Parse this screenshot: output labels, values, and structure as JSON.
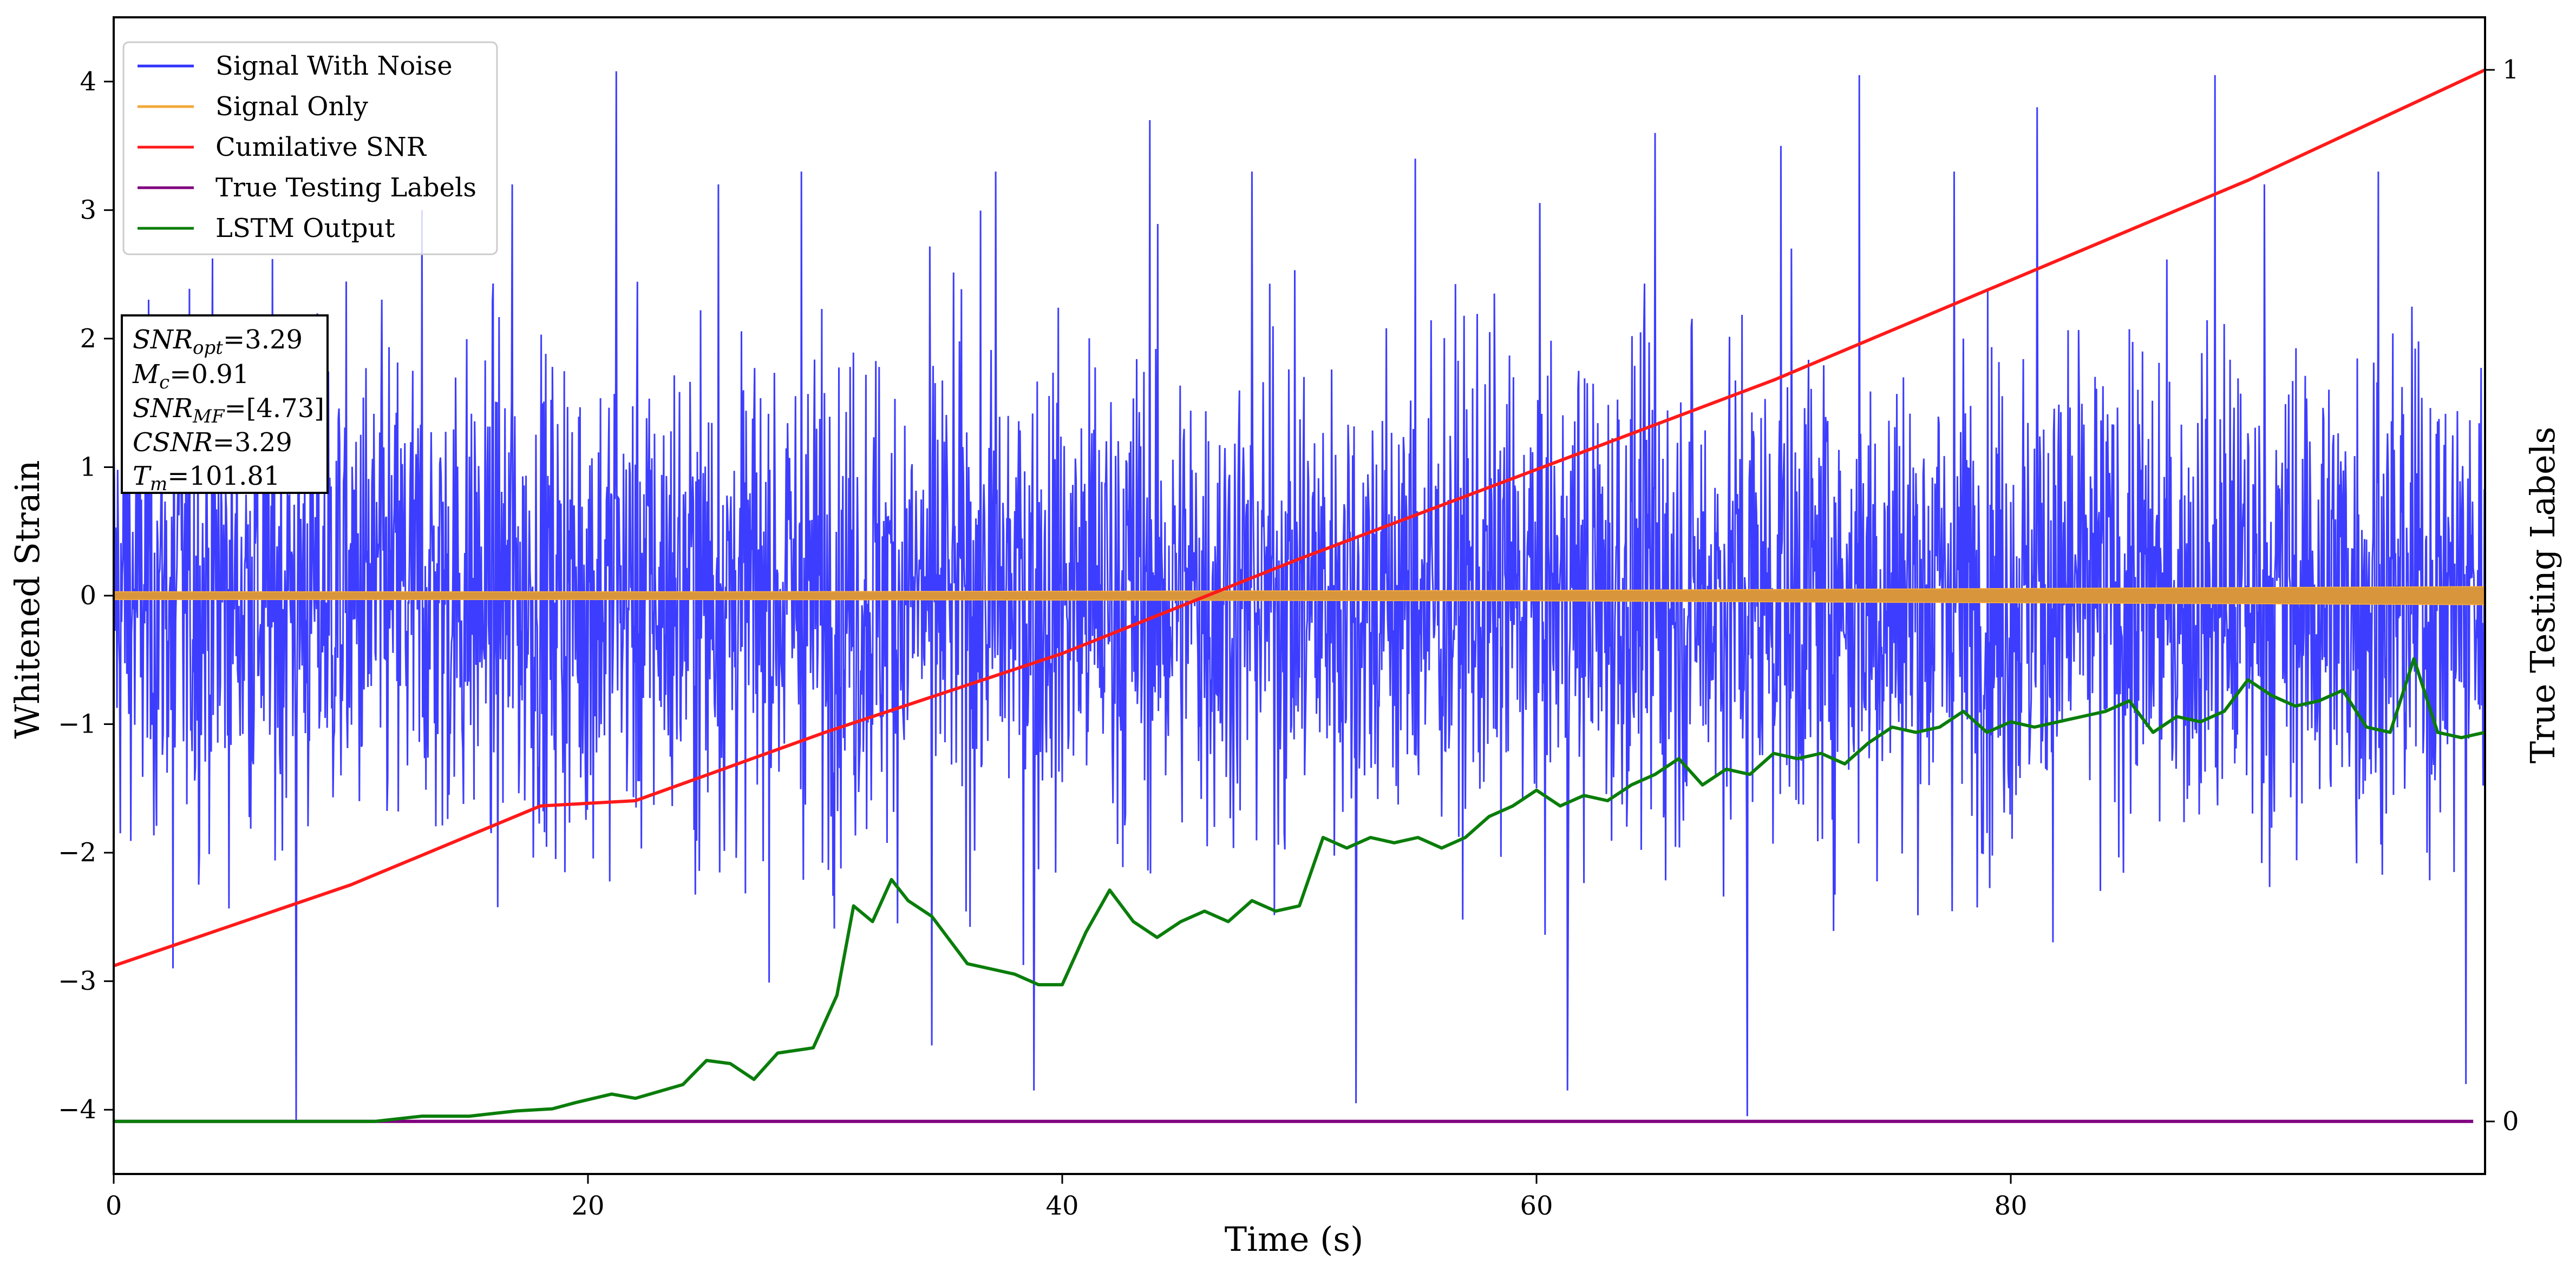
{
  "chart_data": {
    "type": "line",
    "xlabel": "Time (s)",
    "ylabel": "Whitened Strain",
    "y2label": "True Testing Labels",
    "xlim": [
      0,
      100
    ],
    "ylim": [
      -4.5,
      4.5
    ],
    "y2lim": [
      -0.05,
      1.05
    ],
    "xticks": [
      0,
      20,
      40,
      60,
      80
    ],
    "yticks": [
      -4,
      -3,
      -2,
      -1,
      0,
      1,
      2,
      3,
      4
    ],
    "y2ticks": [
      0,
      1
    ],
    "grid": false,
    "legend_position": "top-left",
    "colors": {
      "signal_with_noise": "#3333ff",
      "signal_only": "#f2a93b",
      "cumulative_snr": "#ff1a1a",
      "true_labels": "#800080",
      "lstm_output": "#0a7d0a"
    },
    "series": [
      {
        "name": "Signal With Noise",
        "axis": "left",
        "style": "noise",
        "description_values": {
          "approx_lower_envelope": -2.6,
          "approx_upper_envelope": 2.6,
          "max": 4.08,
          "min": -4.1
        },
        "peaks": [
          [
            0.5,
            2.0
          ],
          [
            2.5,
            -2.9
          ],
          [
            7.7,
            -4.1
          ],
          [
            13.0,
            3.0
          ],
          [
            16.8,
            3.2
          ],
          [
            21.2,
            4.08
          ],
          [
            25.5,
            3.2
          ],
          [
            29.0,
            3.3
          ],
          [
            34.5,
            -3.5
          ],
          [
            37.2,
            3.3
          ],
          [
            38.8,
            -3.85
          ],
          [
            43.7,
            3.7
          ],
          [
            48.0,
            3.3
          ],
          [
            52.4,
            -3.95
          ],
          [
            54.9,
            3.4
          ],
          [
            61.3,
            -3.85
          ],
          [
            65.0,
            3.6
          ],
          [
            68.9,
            -4.05
          ],
          [
            70.3,
            3.5
          ],
          [
            73.6,
            4.05
          ],
          [
            77.6,
            3.3
          ],
          [
            81.1,
            3.8
          ],
          [
            88.6,
            4.05
          ],
          [
            90.7,
            3.2
          ],
          [
            95.5,
            3.3
          ],
          [
            99.2,
            -3.8
          ]
        ]
      },
      {
        "name": "Signal Only",
        "axis": "left",
        "style": "band",
        "amplitude": [
          [
            0,
            0.03
          ],
          [
            25,
            0.03
          ],
          [
            60,
            0.04
          ],
          [
            100,
            0.07
          ]
        ]
      },
      {
        "name": "Cumilative SNR",
        "axis": "right",
        "points": [
          [
            0,
            0.148
          ],
          [
            10,
            0.225
          ],
          [
            18,
            0.3
          ],
          [
            22,
            0.305
          ],
          [
            30,
            0.37
          ],
          [
            40,
            0.445
          ],
          [
            50,
            0.535
          ],
          [
            60,
            0.62
          ],
          [
            70,
            0.705
          ],
          [
            80,
            0.8
          ],
          [
            90,
            0.895
          ],
          [
            100,
            1.0
          ]
        ]
      },
      {
        "name": "True Testing Labels",
        "axis": "right",
        "points": [
          [
            0,
            0.0
          ],
          [
            100,
            0.0
          ]
        ]
      },
      {
        "name": "LSTM Output",
        "axis": "right",
        "points": [
          [
            0,
            0.0
          ],
          [
            11,
            0.0
          ],
          [
            13,
            0.005
          ],
          [
            15,
            0.005
          ],
          [
            17,
            0.01
          ],
          [
            18.5,
            0.012
          ],
          [
            19.5,
            0.018
          ],
          [
            21,
            0.026
          ],
          [
            22,
            0.022
          ],
          [
            24,
            0.035
          ],
          [
            25,
            0.058
          ],
          [
            26,
            0.055
          ],
          [
            27,
            0.04
          ],
          [
            28,
            0.065
          ],
          [
            29.5,
            0.07
          ],
          [
            30.5,
            0.12
          ],
          [
            31.2,
            0.205
          ],
          [
            32,
            0.19
          ],
          [
            32.8,
            0.23
          ],
          [
            33.5,
            0.21
          ],
          [
            34.5,
            0.195
          ],
          [
            35,
            0.18
          ],
          [
            36,
            0.15
          ],
          [
            37,
            0.145
          ],
          [
            38,
            0.14
          ],
          [
            39,
            0.13
          ],
          [
            40,
            0.13
          ],
          [
            41,
            0.18
          ],
          [
            42,
            0.22
          ],
          [
            43,
            0.19
          ],
          [
            44,
            0.175
          ],
          [
            45,
            0.19
          ],
          [
            46,
            0.2
          ],
          [
            47,
            0.19
          ],
          [
            48,
            0.21
          ],
          [
            49,
            0.2
          ],
          [
            50,
            0.205
          ],
          [
            51,
            0.27
          ],
          [
            52,
            0.26
          ],
          [
            53,
            0.27
          ],
          [
            54,
            0.265
          ],
          [
            55,
            0.27
          ],
          [
            56,
            0.26
          ],
          [
            57,
            0.27
          ],
          [
            58,
            0.29
          ],
          [
            59,
            0.3
          ],
          [
            60,
            0.315
          ],
          [
            61,
            0.3
          ],
          [
            62,
            0.31
          ],
          [
            63,
            0.305
          ],
          [
            64,
            0.32
          ],
          [
            65,
            0.33
          ],
          [
            66,
            0.345
          ],
          [
            67,
            0.32
          ],
          [
            68,
            0.335
          ],
          [
            69,
            0.33
          ],
          [
            70,
            0.35
          ],
          [
            71,
            0.345
          ],
          [
            72,
            0.35
          ],
          [
            73,
            0.34
          ],
          [
            74,
            0.36
          ],
          [
            75,
            0.375
          ],
          [
            76,
            0.37
          ],
          [
            77,
            0.375
          ],
          [
            78,
            0.39
          ],
          [
            79,
            0.37
          ],
          [
            80,
            0.38
          ],
          [
            81,
            0.375
          ],
          [
            82,
            0.38
          ],
          [
            83,
            0.385
          ],
          [
            84,
            0.39
          ],
          [
            85,
            0.4
          ],
          [
            86,
            0.37
          ],
          [
            87,
            0.385
          ],
          [
            88,
            0.38
          ],
          [
            89,
            0.39
          ],
          [
            90,
            0.42
          ],
          [
            91,
            0.405
          ],
          [
            92,
            0.395
          ],
          [
            93,
            0.4
          ],
          [
            94,
            0.41
          ],
          [
            95,
            0.375
          ],
          [
            96,
            0.37
          ],
          [
            97,
            0.44
          ],
          [
            98,
            0.37
          ],
          [
            99,
            0.365
          ],
          [
            100,
            0.37
          ]
        ]
      }
    ]
  },
  "legend": [
    {
      "label": "Signal With Noise",
      "color": "#3333ff"
    },
    {
      "label": "Signal Only",
      "color": "#f2a93b"
    },
    {
      "label": "Cumilative SNR",
      "color": "#ff1a1a"
    },
    {
      "label": "True Testing Labels",
      "color": "#800080"
    },
    {
      "label": "LSTM Output",
      "color": "#0a7d0a"
    }
  ],
  "annotation": {
    "snr_opt": {
      "base": "SNR",
      "sub": "opt",
      "value": "=3.29"
    },
    "mc": {
      "base": "M",
      "sub": "c",
      "value": "=0.91"
    },
    "snr_mf": {
      "base": "SNR",
      "sub": "MF",
      "value": "=[4.73]"
    },
    "csnr": {
      "base": "CSNR",
      "sub": "",
      "value": "=3.29"
    },
    "tm": {
      "base": "T",
      "sub": "m",
      "value": "=101.81"
    }
  }
}
